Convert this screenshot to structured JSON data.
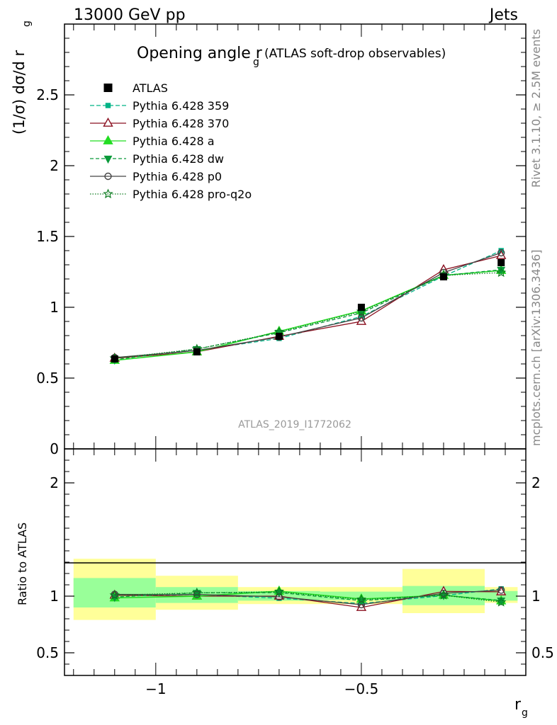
{
  "header": {
    "left": "13000 GeV pp",
    "right": "Jets"
  },
  "side_labels": {
    "rivet": "Rivet 3.1.10, ≥ 2.5M events",
    "mcplots": "mcplots.cern.ch [arXiv:1306.3436]"
  },
  "chart_data": {
    "type": "line",
    "title_main": "Opening angle r",
    "title_sub": "g",
    "title_extra": "(ATLAS soft-drop observables)",
    "analysis_label": "ATLAS_2019_I1772062",
    "xlabel_main": "r",
    "xlabel_sub": "g",
    "ylabel_main": "(1/σ) dσ/d r",
    "ylabel_sub": "g",
    "ratio_ylabel": "Ratio to ATLAS",
    "xlim": [
      -1.222,
      -0.1
    ],
    "ylim": [
      0,
      3.0
    ],
    "ratio_ylim": [
      0.3,
      2.3
    ],
    "x_ticks": [
      -1,
      -0.5
    ],
    "x_tick_labels": [
      "−1",
      "−0.5"
    ],
    "y_ticks": [
      0.5,
      1,
      1.5,
      2,
      2.5
    ],
    "y_tick_labels": [
      "0.5",
      "1",
      "1.5",
      "2",
      "2.5"
    ],
    "y_zero_label": "0",
    "ratio_ticks": [
      0.5,
      1,
      2
    ],
    "ratio_tick_labels": [
      "0.5",
      "1",
      "2"
    ],
    "bin_edges": [
      -1.2,
      -1.0,
      -0.8,
      -0.6,
      -0.4,
      -0.2,
      -0.12
    ],
    "x": [
      -1.1,
      -0.9,
      -0.7,
      -0.5,
      -0.3,
      -0.16
    ],
    "data": {
      "name": "ATLAS",
      "values": [
        0.635,
        0.685,
        0.795,
        1.0,
        1.215,
        1.315
      ]
    },
    "band_inner": [
      [
        0.9,
        1.16
      ],
      [
        0.94,
        1.08
      ],
      [
        0.96,
        1.045
      ],
      [
        0.965,
        1.04
      ],
      [
        0.92,
        1.09
      ],
      [
        0.96,
        1.045
      ]
    ],
    "band_outer": [
      [
        0.79,
        1.33
      ],
      [
        0.88,
        1.18
      ],
      [
        0.93,
        1.08
      ],
      [
        0.93,
        1.08
      ],
      [
        0.85,
        1.24
      ],
      [
        0.94,
        1.08
      ]
    ],
    "series": [
      {
        "name": "Pythia 6.428 359",
        "color": "#00b386",
        "dash": "6,3",
        "marker": "square-small",
        "values": [
          0.64,
          0.695,
          0.78,
          0.935,
          1.22,
          1.4
        ]
      },
      {
        "name": "Pythia 6.428 370",
        "color": "#8b1020",
        "dash": "",
        "marker": "triangle-open",
        "values": [
          0.64,
          0.685,
          0.795,
          0.9,
          1.265,
          1.365
        ]
      },
      {
        "name": "Pythia 6.428 a",
        "color": "#22dd22",
        "dash": "",
        "marker": "triangle-filled",
        "values": [
          0.625,
          0.685,
          0.83,
          0.975,
          1.225,
          1.26
        ]
      },
      {
        "name": "Pythia 6.428 dw",
        "color": "#0a9a3a",
        "dash": "5,3",
        "marker": "triangle-down",
        "values": [
          0.63,
          0.705,
          0.82,
          0.96,
          1.225,
          1.265
        ]
      },
      {
        "name": "Pythia 6.428 p0",
        "color": "#444444",
        "dash": "",
        "marker": "circle-open",
        "values": [
          0.645,
          0.695,
          0.79,
          0.925,
          1.245,
          1.385
        ]
      },
      {
        "name": "Pythia 6.428 pro-q2o",
        "color": "#0a7a1e",
        "dash": "1.5,2",
        "marker": "star",
        "values": [
          0.64,
          0.705,
          0.825,
          0.97,
          1.225,
          1.245
        ]
      }
    ],
    "legend_position": "top-left",
    "grid": false
  }
}
